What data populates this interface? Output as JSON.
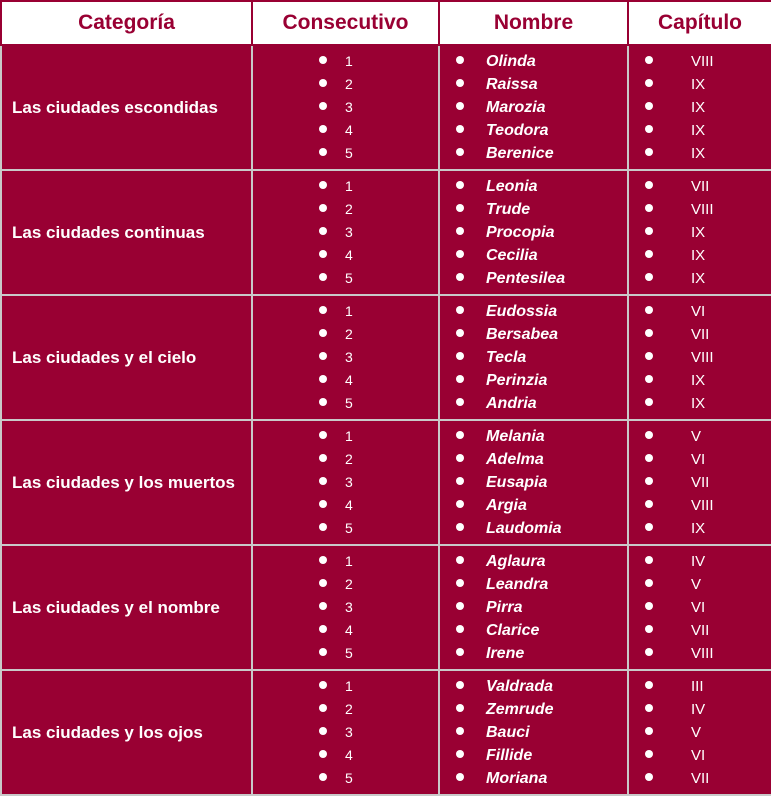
{
  "headers": [
    "Categoría",
    "Consecutivo",
    "Nombre",
    "Capítulo"
  ],
  "rows": [
    {
      "category": "Las ciudades escondidas",
      "consecutivo": [
        "1",
        "2",
        "3",
        "4",
        "5"
      ],
      "nombre": [
        "Olinda",
        "Raissa",
        "Marozia",
        "Teodora",
        "Berenice"
      ],
      "capitulo": [
        "VIII",
        "IX",
        "IX",
        "IX",
        "IX"
      ]
    },
    {
      "category": "Las ciudades continuas",
      "consecutivo": [
        "1",
        "2",
        "3",
        "4",
        "5"
      ],
      "nombre": [
        "Leonia",
        "Trude",
        "Procopia",
        "Cecilia",
        "Pentesilea"
      ],
      "capitulo": [
        "VII",
        "VIII",
        "IX",
        "IX",
        "IX"
      ]
    },
    {
      "category": "Las ciudades y el cielo",
      "consecutivo": [
        "1",
        "2",
        "3",
        "4",
        "5"
      ],
      "nombre": [
        "Eudossia",
        "Bersabea",
        "Tecla",
        "Perinzia",
        "Andria"
      ],
      "capitulo": [
        "VI",
        "VII",
        "VIII",
        "IX",
        "IX"
      ]
    },
    {
      "category": "Las ciudades y los muertos",
      "consecutivo": [
        "1",
        "2",
        "3",
        "4",
        "5"
      ],
      "nombre": [
        "Melania",
        "Adelma",
        "Eusapia",
        "Argia",
        "Laudomia"
      ],
      "capitulo": [
        "V",
        "VI",
        "VII",
        "VIII",
        "IX"
      ]
    },
    {
      "category": "Las ciudades y el nombre",
      "consecutivo": [
        "1",
        "2",
        "3",
        "4",
        "5"
      ],
      "nombre": [
        "Aglaura",
        "Leandra",
        "Pirra",
        "Clarice",
        "Irene"
      ],
      "capitulo": [
        "IV",
        "V",
        "VI",
        "VII",
        "VIII"
      ]
    },
    {
      "category": "Las ciudades y los ojos",
      "consecutivo": [
        "1",
        "2",
        "3",
        "4",
        "5"
      ],
      "nombre": [
        "Valdrada",
        "Zemrude",
        "Bauci",
        "Fillide",
        "Moriana"
      ],
      "capitulo": [
        "III",
        "IV",
        "V",
        "VI",
        "VII"
      ]
    }
  ],
  "colors": {
    "accent": "#990033",
    "header_bg": "#ffffff",
    "cell_text": "#ffffff",
    "grid": "#c9c9c9"
  }
}
